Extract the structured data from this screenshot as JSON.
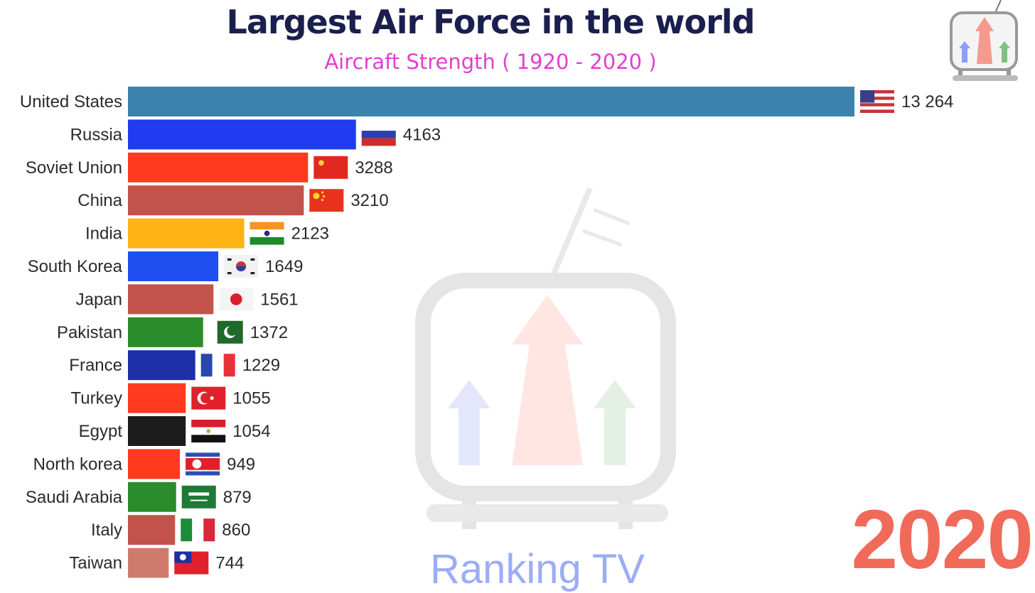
{
  "title": "Largest Air Force in the world",
  "subtitle": "Aircraft Strength ( 1920 - 2020 )",
  "year": "2020",
  "watermark": "Ranking TV",
  "chart_data": {
    "type": "bar",
    "orientation": "horizontal",
    "title": "Largest Air Force in the world",
    "subtitle": "Aircraft Strength ( 1920 - 2020 )",
    "xlim": [
      0,
      13264
    ],
    "grid": false,
    "categories": [
      "United States",
      "Russia",
      "Soviet Union",
      "China",
      "India",
      "South Korea",
      "Japan",
      "Pakistan",
      "France",
      "Turkey",
      "Egypt",
      "North korea",
      "Saudi Arabia",
      "Italy",
      "Taiwan"
    ],
    "values": [
      13264,
      4163,
      3288,
      3210,
      2123,
      1649,
      1561,
      1372,
      1229,
      1055,
      1054,
      949,
      879,
      860,
      744
    ],
    "value_labels": [
      "13 264",
      "4163",
      "3288",
      "3210",
      "2123",
      "1649",
      "1561",
      "1372",
      "1229",
      "1055",
      "1054",
      "949",
      "879",
      "860",
      "744"
    ],
    "colors": [
      "#3b82ad",
      "#1f3cf0",
      "#ff3a1f",
      "#c2524a",
      "#ffb416",
      "#1f4ff0",
      "#c2524a",
      "#2a8c2a",
      "#1f2fa8",
      "#ff3a1f",
      "#1c1c1c",
      "#ff3a1f",
      "#2a8c2a",
      "#c2524a",
      "#d07a6e"
    ],
    "flags": [
      "usa-flag",
      "russia-flag",
      "soviet-flag",
      "china-flag",
      "india-flag",
      "south-korea-flag",
      "japan-flag",
      "pakistan-flag",
      "france-flag",
      "turkey-flag",
      "egypt-flag",
      "north-korea-flag",
      "saudi-arabia-flag",
      "italy-flag",
      "taiwan-flag"
    ]
  }
}
